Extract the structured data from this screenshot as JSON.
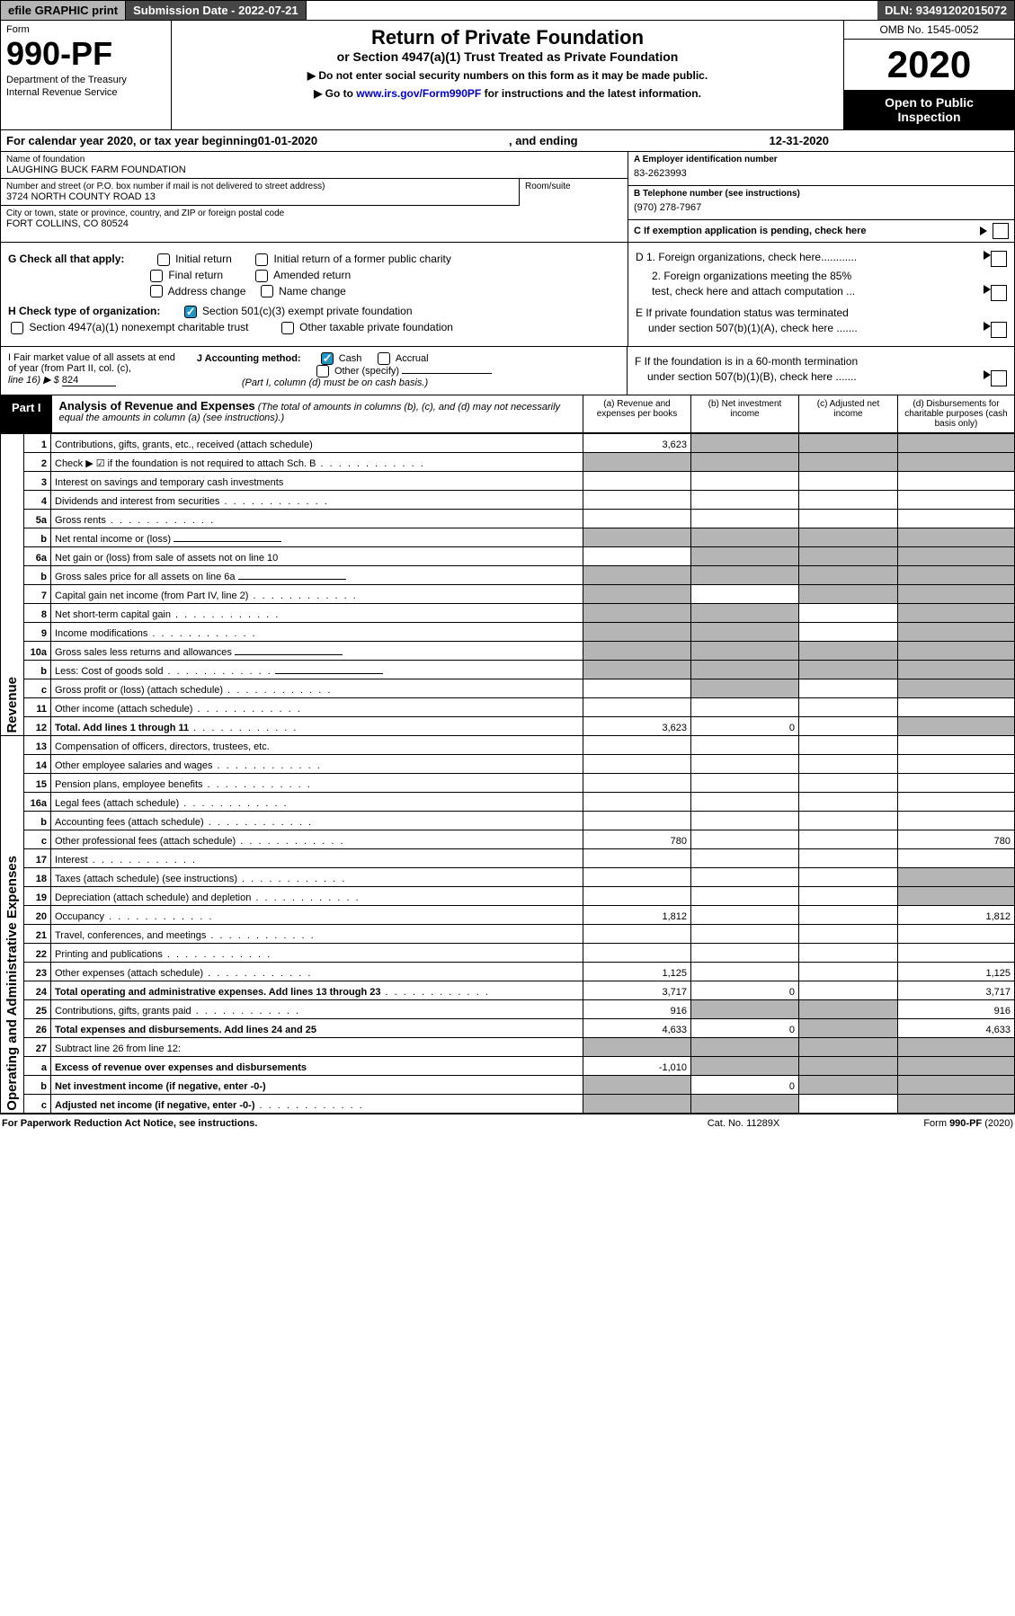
{
  "topbar": {
    "efile": "efile GRAPHIC print",
    "submission_label": "Submission Date - 2022-07-21",
    "dln": "DLN: 93491202015072"
  },
  "header": {
    "form_label": "Form",
    "form_number": "990-PF",
    "dept1": "Department of the Treasury",
    "dept2": "Internal Revenue Service",
    "title": "Return of Private Foundation",
    "subtitle": "or Section 4947(a)(1) Trust Treated as Private Foundation",
    "note1": "▶ Do not enter social security numbers on this form as it may be made public.",
    "note2_pre": "▶ Go to ",
    "note2_link": "www.irs.gov/Form990PF",
    "note2_post": " for instructions and the latest information.",
    "omb": "OMB No. 1545-0052",
    "year": "2020",
    "open1": "Open to Public",
    "open2": "Inspection"
  },
  "calendar": {
    "pre": "For calendar year 2020, or tax year beginning ",
    "begin": "01-01-2020",
    "mid": " , and ending ",
    "end": "12-31-2020"
  },
  "entity": {
    "name_lbl": "Name of foundation",
    "name_val": "LAUGHING BUCK FARM FOUNDATION",
    "addr_lbl": "Number and street (or P.O. box number if mail is not delivered to street address)",
    "addr_val": "3724 NORTH COUNTY ROAD 13",
    "room_lbl": "Room/suite",
    "room_val": "",
    "city_lbl": "City or town, state or province, country, and ZIP or foreign postal code",
    "city_val": "FORT COLLINS, CO  80524",
    "ein_lbl": "A Employer identification number",
    "ein_val": "83-2623993",
    "phone_lbl": "B Telephone number (see instructions)",
    "phone_val": "(970) 278-7967",
    "c_text": "C If exemption application is pending, check here"
  },
  "g": {
    "label": "G Check all that apply:",
    "opts": [
      "Initial return",
      "Initial return of a former public charity",
      "Final return",
      "Amended return",
      "Address change",
      "Name change"
    ]
  },
  "h": {
    "label": "H Check type of organization:",
    "opt1": "Section 501(c)(3) exempt private foundation",
    "opt2": "Section 4947(a)(1) nonexempt charitable trust",
    "opt3": "Other taxable private foundation"
  },
  "d": {
    "d1": "D 1. Foreign organizations, check here............",
    "d2a": "2. Foreign organizations meeting the 85%",
    "d2b": "test, check here and attach computation ...",
    "e1": "E  If private foundation status was terminated",
    "e2": "under section 507(b)(1)(A), check here .......",
    "f1": "F  If the foundation is in a 60-month termination",
    "f2": "under section 507(b)(1)(B), check here ......."
  },
  "ij": {
    "i1": "I Fair market value of all assets at end",
    "i2": "of year (from Part II, col. (c),",
    "i3_pre": "line 16) ▶ $ ",
    "i3_val": "824",
    "j_label": "J Accounting method:",
    "j_cash": "Cash",
    "j_accrual": "Accrual",
    "j_other": "Other (specify)",
    "j_note": "(Part I, column (d) must be on cash basis.)"
  },
  "part1": {
    "tag": "Part I",
    "title": "Analysis of Revenue and Expenses",
    "title_note": " (The total of amounts in columns (b), (c), and (d) may not necessarily equal the amounts in column (a) (see instructions).)",
    "col_a": "(a)   Revenue and expenses per books",
    "col_b": "(b)   Net investment income",
    "col_c": "(c)   Adjusted net income",
    "col_d": "(d)  Disbursements for charitable purposes (cash basis only)"
  },
  "sides": {
    "rev": "Revenue",
    "exp": "Operating and Administrative Expenses"
  },
  "rows": [
    {
      "n": "1",
      "d": "Contributions, gifts, grants, etc., received (attach schedule)",
      "a": "3,623",
      "shade": [
        "b",
        "c",
        "d"
      ]
    },
    {
      "n": "2",
      "d": "Check ▶ ☑ if the foundation is not required to attach Sch. B",
      "dots": true,
      "shade": [
        "a",
        "b",
        "c",
        "d"
      ]
    },
    {
      "n": "3",
      "d": "Interest on savings and temporary cash investments"
    },
    {
      "n": "4",
      "d": "Dividends and interest from securities",
      "dots": true
    },
    {
      "n": "5a",
      "d": "Gross rents",
      "dots": true
    },
    {
      "n": "b",
      "d": "Net rental income or (loss)",
      "inset": true,
      "shade": [
        "a",
        "b",
        "c",
        "d"
      ]
    },
    {
      "n": "6a",
      "d": "Net gain or (loss) from sale of assets not on line 10",
      "shade": [
        "b",
        "c",
        "d"
      ]
    },
    {
      "n": "b",
      "d": "Gross sales price for all assets on line 6a",
      "inset": true,
      "shade": [
        "a",
        "b",
        "c",
        "d"
      ]
    },
    {
      "n": "7",
      "d": "Capital gain net income (from Part IV, line 2)",
      "dots": true,
      "shade": [
        "a",
        "c",
        "d"
      ]
    },
    {
      "n": "8",
      "d": "Net short-term capital gain",
      "dots": true,
      "shade": [
        "a",
        "b",
        "d"
      ]
    },
    {
      "n": "9",
      "d": "Income modifications",
      "dots": true,
      "shade": [
        "a",
        "b",
        "d"
      ]
    },
    {
      "n": "10a",
      "d": "Gross sales less returns and allowances",
      "inset": true,
      "shade": [
        "a",
        "b",
        "c",
        "d"
      ]
    },
    {
      "n": "b",
      "d": "Less: Cost of goods sold",
      "dots": true,
      "inset": true,
      "shade": [
        "a",
        "b",
        "c",
        "d"
      ]
    },
    {
      "n": "c",
      "d": "Gross profit or (loss) (attach schedule)",
      "dots": true,
      "shade": [
        "b",
        "d"
      ]
    },
    {
      "n": "11",
      "d": "Other income (attach schedule)",
      "dots": true
    },
    {
      "n": "12",
      "d": "Total. Add lines 1 through 11",
      "dots": true,
      "bold": true,
      "a": "3,623",
      "b": "0",
      "shade": [
        "d"
      ]
    },
    {
      "n": "13",
      "d": "Compensation of officers, directors, trustees, etc."
    },
    {
      "n": "14",
      "d": "Other employee salaries and wages",
      "dots": true
    },
    {
      "n": "15",
      "d": "Pension plans, employee benefits",
      "dots": true
    },
    {
      "n": "16a",
      "d": "Legal fees (attach schedule)",
      "dots": true
    },
    {
      "n": "b",
      "d": "Accounting fees (attach schedule)",
      "dots": true
    },
    {
      "n": "c",
      "d": "Other professional fees (attach schedule)",
      "dots": true,
      "a": "780",
      "dv": "780"
    },
    {
      "n": "17",
      "d": "Interest",
      "dots": true
    },
    {
      "n": "18",
      "d": "Taxes (attach schedule) (see instructions)",
      "dots": true,
      "shade": [
        "d"
      ]
    },
    {
      "n": "19",
      "d": "Depreciation (attach schedule) and depletion",
      "dots": true,
      "shade": [
        "d"
      ]
    },
    {
      "n": "20",
      "d": "Occupancy",
      "dots": true,
      "a": "1,812",
      "dv": "1,812"
    },
    {
      "n": "21",
      "d": "Travel, conferences, and meetings",
      "dots": true
    },
    {
      "n": "22",
      "d": "Printing and publications",
      "dots": true
    },
    {
      "n": "23",
      "d": "Other expenses (attach schedule)",
      "dots": true,
      "a": "1,125",
      "dv": "1,125"
    },
    {
      "n": "24",
      "d": "Total operating and administrative expenses. Add lines 13 through 23",
      "dots": true,
      "bold": true,
      "a": "3,717",
      "b": "0",
      "dv": "3,717"
    },
    {
      "n": "25",
      "d": "Contributions, gifts, grants paid",
      "dots": true,
      "a": "916",
      "shade": [
        "b",
        "c"
      ],
      "dv": "916"
    },
    {
      "n": "26",
      "d": "Total expenses and disbursements. Add lines 24 and 25",
      "bold": true,
      "a": "4,633",
      "b": "0",
      "shade": [
        "c"
      ],
      "dv": "4,633"
    },
    {
      "n": "27",
      "d": "Subtract line 26 from line 12:",
      "shade": [
        "a",
        "b",
        "c",
        "d"
      ]
    },
    {
      "n": "a",
      "d": "Excess of revenue over expenses and disbursements",
      "bold": true,
      "a": "-1,010",
      "shade": [
        "b",
        "c",
        "d"
      ]
    },
    {
      "n": "b",
      "d": "Net investment income (if negative, enter -0-)",
      "bold": true,
      "shade": [
        "a",
        "c",
        "d"
      ],
      "b": "0"
    },
    {
      "n": "c",
      "d": "Adjusted net income (if negative, enter -0-)",
      "dots": true,
      "bold": true,
      "shade": [
        "a",
        "b",
        "d"
      ]
    }
  ],
  "footer": {
    "left": "For Paperwork Reduction Act Notice, see instructions.",
    "center": "Cat. No. 11289X",
    "right": "Form 990-PF (2020)"
  },
  "colors": {
    "shade": "#b5b5b5",
    "darkbar": "#464646",
    "check": "#2196c4",
    "link": "#0000cc"
  }
}
